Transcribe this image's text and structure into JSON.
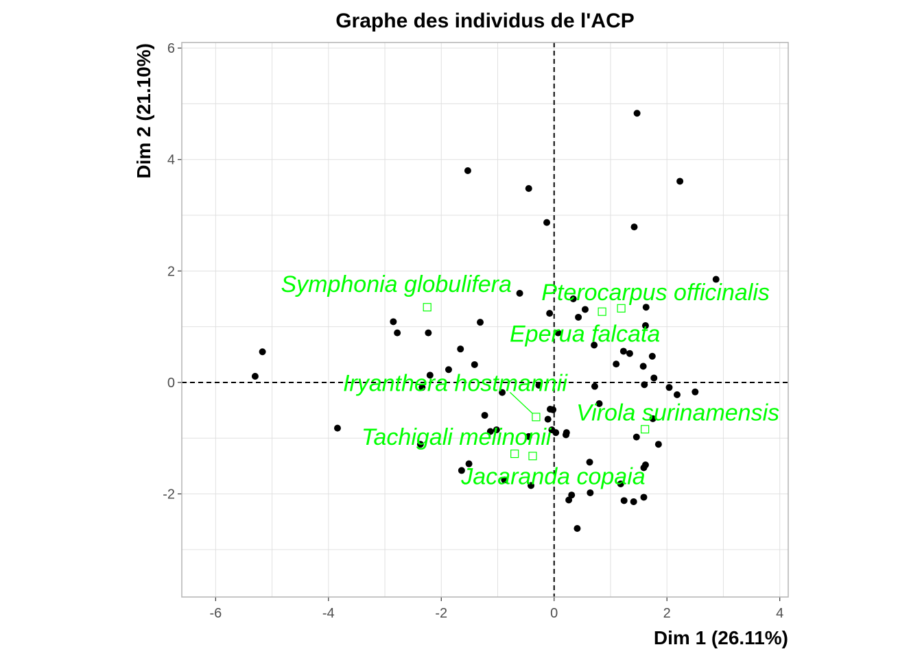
{
  "chart_data": {
    "type": "scatter",
    "title": "Graphe des individus de l'ACP",
    "xlabel": "Dim 1 (26.11%)",
    "ylabel": "Dim 2 (21.10%)",
    "xlim": [
      -6.6,
      4.15
    ],
    "ylim": [
      -3.85,
      6.1
    ],
    "x_ticks": [
      -6,
      -4,
      -2,
      0,
      2,
      4
    ],
    "y_ticks": [
      -2,
      0,
      2,
      4,
      6
    ],
    "grid": true,
    "reference_lines": {
      "x": 0,
      "y": 0,
      "style": "dashed"
    },
    "colors": {
      "points": "#000000",
      "supplementary": "#00ff00",
      "grid": "#e0e0e0",
      "panel_border": "#b3b3b3"
    },
    "series": [
      {
        "marker": "filled-circle",
        "points": [
          [
            1.47,
            4.83
          ],
          [
            -1.53,
            3.8
          ],
          [
            -0.45,
            3.48
          ],
          [
            2.23,
            3.61
          ],
          [
            -0.13,
            2.87
          ],
          [
            1.42,
            2.79
          ],
          [
            2.87,
            1.85
          ],
          [
            -5.3,
            0.11
          ],
          [
            -5.17,
            0.55
          ],
          [
            -3.84,
            -0.82
          ],
          [
            -2.85,
            1.09
          ],
          [
            -2.78,
            0.89
          ],
          [
            -2.23,
            0.89
          ],
          [
            -2.2,
            0.13
          ],
          [
            -2.34,
            -0.09
          ],
          [
            -1.87,
            0.23
          ],
          [
            -1.66,
            0.6
          ],
          [
            -1.41,
            0.32
          ],
          [
            -1.31,
            1.08
          ],
          [
            -1.23,
            -0.59
          ],
          [
            -1.13,
            -0.88
          ],
          [
            -1.02,
            -0.85
          ],
          [
            -0.61,
            1.6
          ],
          [
            -0.27,
            -0.05
          ],
          [
            -0.08,
            1.24
          ],
          [
            -0.07,
            -0.48
          ],
          [
            -0.02,
            -0.49
          ],
          [
            -0.11,
            -0.66
          ],
          [
            -0.04,
            -0.85
          ],
          [
            0.03,
            -0.9
          ],
          [
            -0.92,
            -0.18
          ],
          [
            -0.45,
            -0.97
          ],
          [
            -2.37,
            -1.11
          ],
          [
            -1.51,
            -1.46
          ],
          [
            -1.64,
            -1.58
          ],
          [
            -0.88,
            -1.75
          ],
          [
            -0.41,
            -1.85
          ],
          [
            0.07,
            0.89
          ],
          [
            0.34,
            1.5
          ],
          [
            0.43,
            1.17
          ],
          [
            0.55,
            1.31
          ],
          [
            0.71,
            0.67
          ],
          [
            0.72,
            -0.07
          ],
          [
            0.8,
            -0.38
          ],
          [
            0.22,
            -0.9
          ],
          [
            0.21,
            -0.94
          ],
          [
            0.63,
            -1.43
          ],
          [
            0.31,
            -2.02
          ],
          [
            0.26,
            -2.11
          ],
          [
            0.64,
            -1.98
          ],
          [
            0.41,
            -2.62
          ],
          [
            1.1,
            0.33
          ],
          [
            1.23,
            0.56
          ],
          [
            1.34,
            0.52
          ],
          [
            1.63,
            1.35
          ],
          [
            1.62,
            1.02
          ],
          [
            1.58,
            0.29
          ],
          [
            1.74,
            0.47
          ],
          [
            1.77,
            0.08
          ],
          [
            1.6,
            -0.04
          ],
          [
            2.04,
            -0.09
          ],
          [
            2.18,
            -0.22
          ],
          [
            2.5,
            -0.17
          ],
          [
            1.46,
            -0.98
          ],
          [
            1.75,
            -0.65
          ],
          [
            1.85,
            -1.11
          ],
          [
            1.59,
            -1.53
          ],
          [
            1.62,
            -1.48
          ],
          [
            1.18,
            -1.82
          ],
          [
            1.24,
            -2.12
          ],
          [
            1.41,
            -2.14
          ],
          [
            1.59,
            -2.06
          ]
        ]
      }
    ],
    "supplementary": [
      {
        "name": "Symphonia globulifera",
        "x": -2.25,
        "y": 1.35
      },
      {
        "name": "Pterocarpus officinalis",
        "x": 1.19,
        "y": 1.33
      },
      {
        "name": "Eperua falcata",
        "x": 0.85,
        "y": 1.27
      },
      {
        "name": "Iryanthera hostmannii",
        "x": -0.32,
        "y": -0.62
      },
      {
        "name": "Virola surinamensis",
        "x": 1.61,
        "y": -0.84
      },
      {
        "name": "Tachigali melinonii",
        "x": -0.7,
        "y": -1.28
      },
      {
        "name": "Jacaranda copaia",
        "x": -0.38,
        "y": -1.32
      }
    ]
  }
}
